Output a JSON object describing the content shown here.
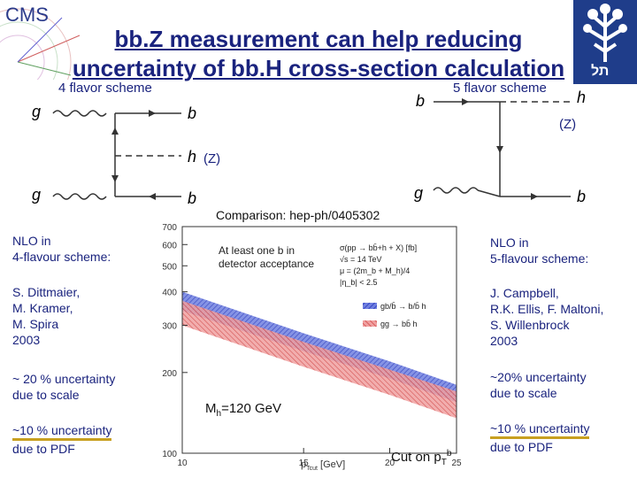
{
  "slide": {
    "title_line1": "bb.Z measurement can help reducing",
    "title_line2": "uncertainty of bb.H cross-section calculation",
    "logo_left": "CMS",
    "logo_right_text": "תל"
  },
  "diagram_left": {
    "label": "4 flavor scheme",
    "g_top": "g",
    "g_bottom": "g",
    "b_top": "b",
    "h": "h",
    "b_bottom": "b",
    "z": "(Z)"
  },
  "diagram_right": {
    "label": "5 flavor scheme",
    "b_in": "b",
    "g_in": "g",
    "h": "h",
    "b_out": "b",
    "z": "(Z)"
  },
  "comparison_label": "Comparison: hep-ph/0405302",
  "left_notes": {
    "scheme": [
      "NLO in",
      "4-flavour scheme:"
    ],
    "authors": [
      "S. Dittmaier,",
      "M. Kramer,",
      "M. Spira",
      "2003"
    ],
    "scale": [
      "~ 20 % uncertainty",
      "due to scale"
    ],
    "pdf": [
      "~10 % uncertainty",
      "due to PDF"
    ]
  },
  "right_notes": {
    "scheme": [
      "NLO in",
      "5-flavour scheme:"
    ],
    "authors": [
      "J. Campbell,",
      "R.K. Ellis, F. Maltoni,",
      "S. Willenbrock",
      "2003"
    ],
    "scale": [
      "~20% uncertainty",
      "due to scale"
    ],
    "pdf": [
      "~10 % uncertainty",
      "due to PDF"
    ]
  },
  "plot": {
    "annotation_acceptance": [
      "At least one b in",
      "detector acceptance"
    ],
    "mh_label": "M",
    "mh_sub": "h",
    "mh_value": "=120 GeV",
    "cut_label": "Cut on p",
    "cut_sub": "T",
    "cut_sup": "b",
    "xlabel": "p",
    "xlabel_sub": "Tcut",
    "xlabel_unit": " [GeV]",
    "legend_lines": [
      "σ(pp → bb̄+h + X) [fb]",
      "√s = 14 TeV",
      "μ = (2m_b + M_h)/4",
      "|η_b| < 2.5"
    ],
    "legend_series": [
      "gb/b̄ → b/b̄ h",
      "gg → bb̄ h"
    ]
  },
  "chart_data": {
    "type": "area",
    "xscale": "log",
    "yscale": "log",
    "xlim": [
      10,
      25
    ],
    "ylim": [
      100,
      700
    ],
    "x_ticks": [
      "10",
      "15",
      "20",
      "25"
    ],
    "y_ticks": [
      "100",
      "200",
      "300",
      "400",
      "500",
      "600",
      "700"
    ],
    "x": [
      10,
      15,
      20,
      25
    ],
    "series": [
      {
        "name": "gb/b̄ → b/b̄ h",
        "color": "#3344cc",
        "upper": [
          400,
          280,
          220,
          180
        ],
        "lower": [
          340,
          240,
          190,
          155
        ]
      },
      {
        "name": "gg → bb̄ h",
        "color": "#d04040",
        "upper": [
          370,
          260,
          205,
          170
        ],
        "lower": [
          300,
          210,
          165,
          135
        ]
      }
    ]
  }
}
